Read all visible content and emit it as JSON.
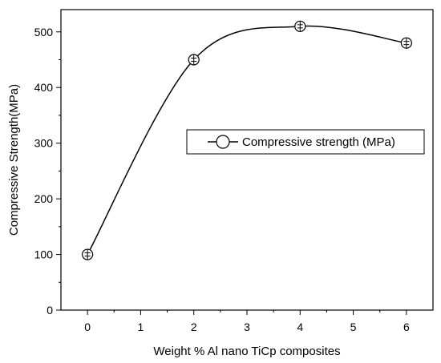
{
  "chart_data": {
    "type": "line",
    "title": "",
    "xlabel": "Weight % Al nano TiCp composites",
    "ylabel": "Compressive Strength(MPa)",
    "xlim": [
      -0.5,
      6.5
    ],
    "ylim": [
      0,
      540
    ],
    "x_ticks": [
      "0",
      "1",
      "2",
      "3",
      "4",
      "5",
      "6"
    ],
    "y_ticks": [
      "0",
      "100",
      "200",
      "300",
      "400",
      "500"
    ],
    "grid": false,
    "legend_position": "right",
    "series": [
      {
        "name": "Compressive strength (MPa)",
        "x": [
          0,
          2,
          4,
          6
        ],
        "y": [
          100,
          450,
          510,
          480
        ],
        "marker": "open-circle-with-errorbar",
        "line": "smooth",
        "color": "#000000"
      }
    ]
  }
}
